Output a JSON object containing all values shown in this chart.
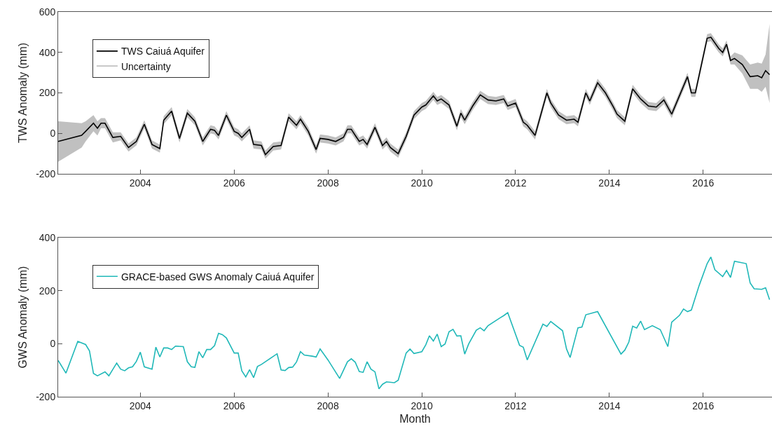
{
  "chart_data": [
    {
      "type": "line",
      "ylabel": "TWS Anomaly (mm)",
      "annotations": [
        "Uncertainty"
      ],
      "x": [
        "2002-04",
        "2002-10",
        "2002-11",
        "2003-01",
        "2003-02",
        "2003-03",
        "2003-04",
        "2003-06",
        "2003-08",
        "2003-10",
        "2003-12",
        "2004-02",
        "2004-04",
        "2004-06",
        "2004-07",
        "2004-09",
        "2004-11",
        "2005-01",
        "2005-03",
        "2005-05",
        "2005-07",
        "2005-08",
        "2005-09",
        "2005-11",
        "2006-01",
        "2006-02",
        "2006-03",
        "2006-05",
        "2006-06",
        "2006-08",
        "2006-09",
        "2006-11",
        "2007-01",
        "2007-03",
        "2007-05",
        "2007-06",
        "2007-08",
        "2007-10",
        "2007-11",
        "2008-01",
        "2008-03",
        "2008-05",
        "2008-06",
        "2008-07",
        "2008-09",
        "2008-10",
        "2008-11",
        "2009-01",
        "2009-03",
        "2009-04",
        "2009-05",
        "2009-07",
        "2009-09",
        "2009-11",
        "2010-01",
        "2010-02",
        "2010-04",
        "2010-05",
        "2010-06",
        "2010-08",
        "2010-10",
        "2010-11",
        "2010-12",
        "2011-02",
        "2011-04",
        "2011-06",
        "2011-08",
        "2011-10",
        "2011-11",
        "2012-01",
        "2012-03",
        "2012-04",
        "2012-06",
        "2012-09",
        "2012-10",
        "2012-12",
        "2013-02",
        "2013-04",
        "2013-05",
        "2013-07",
        "2013-08",
        "2013-10",
        "2013-12",
        "2014-02",
        "2014-03",
        "2014-05",
        "2014-07",
        "2014-09",
        "2014-11",
        "2015-01",
        "2015-03",
        "2015-05",
        "2015-09",
        "2015-10",
        "2015-11",
        "2016-02",
        "2016-03",
        "2016-05",
        "2016-06",
        "2016-07",
        "2016-08",
        "2016-09",
        "2016-11",
        "2017-01",
        "2017-03",
        "2017-04",
        "2017-05",
        "2017-06"
      ],
      "series": [
        {
          "name": "TWS Caiuá Aquifer",
          "color": "#000000",
          "values": [
            -40,
            -10,
            10,
            50,
            25,
            50,
            50,
            -20,
            -15,
            -70,
            -40,
            45,
            -55,
            -75,
            65,
            110,
            -25,
            100,
            60,
            -40,
            20,
            15,
            -10,
            90,
            10,
            0,
            -20,
            20,
            -55,
            -60,
            -105,
            -65,
            -60,
            80,
            40,
            70,
            10,
            -80,
            -25,
            -30,
            -40,
            -20,
            20,
            20,
            -40,
            -30,
            -55,
            30,
            -60,
            -40,
            -70,
            -100,
            -15,
            90,
            130,
            140,
            185,
            160,
            170,
            140,
            35,
            100,
            65,
            135,
            190,
            165,
            160,
            170,
            135,
            150,
            55,
            40,
            -10,
            200,
            150,
            90,
            65,
            70,
            55,
            200,
            160,
            250,
            200,
            130,
            95,
            60,
            220,
            170,
            135,
            130,
            165,
            95,
            280,
            200,
            200,
            470,
            475,
            420,
            400,
            440,
            360,
            370,
            340,
            280,
            285,
            275,
            310,
            290
          ],
          "lower": [
            -140,
            -70,
            -40,
            10,
            -10,
            25,
            25,
            -45,
            -35,
            -90,
            -60,
            25,
            -75,
            -95,
            45,
            90,
            -45,
            80,
            40,
            -60,
            0,
            -5,
            -30,
            70,
            -10,
            -20,
            -40,
            0,
            -75,
            -80,
            -125,
            -85,
            -80,
            60,
            20,
            50,
            -10,
            -100,
            -45,
            -50,
            -60,
            -40,
            0,
            0,
            -60,
            -50,
            -75,
            10,
            -80,
            -60,
            -90,
            -120,
            -35,
            70,
            110,
            120,
            165,
            140,
            150,
            120,
            15,
            80,
            45,
            115,
            170,
            145,
            140,
            150,
            115,
            130,
            35,
            20,
            -30,
            180,
            130,
            70,
            45,
            50,
            35,
            180,
            140,
            230,
            180,
            110,
            75,
            40,
            200,
            150,
            115,
            110,
            145,
            75,
            260,
            180,
            180,
            450,
            455,
            400,
            380,
            420,
            340,
            340,
            295,
            220,
            220,
            205,
            230,
            150
          ],
          "upper": [
            60,
            50,
            60,
            90,
            60,
            75,
            75,
            5,
            5,
            -50,
            -20,
            65,
            -35,
            -55,
            85,
            130,
            -5,
            120,
            80,
            -20,
            40,
            35,
            10,
            110,
            30,
            20,
            0,
            40,
            -35,
            -40,
            -85,
            -45,
            -40,
            100,
            60,
            90,
            30,
            -60,
            -5,
            -10,
            -20,
            0,
            40,
            40,
            -20,
            -10,
            -35,
            50,
            -40,
            -20,
            -50,
            -80,
            5,
            110,
            150,
            160,
            205,
            180,
            190,
            160,
            55,
            120,
            85,
            155,
            210,
            185,
            180,
            190,
            155,
            170,
            75,
            60,
            10,
            220,
            170,
            110,
            85,
            90,
            75,
            220,
            180,
            270,
            220,
            150,
            115,
            80,
            240,
            190,
            155,
            150,
            185,
            115,
            300,
            220,
            220,
            490,
            495,
            440,
            420,
            460,
            380,
            400,
            385,
            340,
            350,
            345,
            390,
            540
          ]
        }
      ],
      "xlim": [
        "2002-04-01",
        "2017-06-20"
      ],
      "xticks": [
        "2004",
        "2006",
        "2008",
        "2010",
        "2012",
        "2014",
        "2016"
      ],
      "ylim": [
        -200,
        600
      ],
      "yticks": [
        -200,
        0,
        200,
        400,
        600
      ],
      "grid": false,
      "legend": "top left"
    },
    {
      "type": "line",
      "xlabel": "Month",
      "ylabel": "GWS Anomaly (mm)",
      "x": [
        "2002-04",
        "2002-06",
        "2002-09",
        "2002-11",
        "2002-12",
        "2003-01",
        "2003-02",
        "2003-04",
        "2003-05",
        "2003-07",
        "2003-08",
        "2003-09",
        "2003-10",
        "2003-11",
        "2003-12",
        "2004-01",
        "2004-02",
        "2004-04",
        "2004-05",
        "2004-06",
        "2004-07",
        "2004-08",
        "2004-09",
        "2004-10",
        "2004-12",
        "2005-01",
        "2005-02",
        "2005-03",
        "2005-04",
        "2005-05",
        "2005-06",
        "2005-07",
        "2005-08",
        "2005-09",
        "2005-10",
        "2005-11",
        "2006-01",
        "2006-02",
        "2006-03",
        "2006-04",
        "2006-05",
        "2006-06",
        "2006-07",
        "2006-08",
        "2006-12",
        "2007-01",
        "2007-02",
        "2007-03",
        "2007-04",
        "2007-05",
        "2007-06",
        "2007-07",
        "2007-09",
        "2007-10",
        "2007-11",
        "2008-01",
        "2008-04",
        "2008-06",
        "2008-07",
        "2008-08",
        "2008-09",
        "2008-10",
        "2008-11",
        "2008-12",
        "2009-01",
        "2009-02",
        "2009-03",
        "2009-04",
        "2009-06",
        "2009-07",
        "2009-09",
        "2009-10",
        "2009-11",
        "2010-01",
        "2010-02",
        "2010-03",
        "2010-04",
        "2010-05",
        "2010-06",
        "2010-07",
        "2010-08",
        "2010-09",
        "2010-10",
        "2010-11",
        "2010-12",
        "2011-01",
        "2011-03",
        "2011-04",
        "2011-05",
        "2011-06",
        "2011-09",
        "2011-10",
        "2011-11",
        "2012-02",
        "2012-03",
        "2012-04",
        "2012-08",
        "2012-09",
        "2012-10",
        "2013-01",
        "2013-02",
        "2013-03",
        "2013-05",
        "2013-06",
        "2013-07",
        "2013-10",
        "2014-04",
        "2014-05",
        "2014-06",
        "2014-07",
        "2014-08",
        "2014-09",
        "2014-10",
        "2014-12",
        "2015-02",
        "2015-04",
        "2015-05",
        "2015-07",
        "2015-08",
        "2015-09",
        "2015-10",
        "2015-12",
        "2016-02",
        "2016-03",
        "2016-04",
        "2016-06",
        "2016-07",
        "2016-08",
        "2016-09",
        "2016-12",
        "2017-01",
        "2017-02",
        "2017-04",
        "2017-05",
        "2017-06"
      ],
      "series": [
        {
          "name": "GRACE-based GWS Anomaly Caiuá Aquifer",
          "color": "#20b8b8",
          "values": [
            -63,
            -111,
            9,
            -3,
            -27,
            -112,
            -121,
            -106,
            -121,
            -73,
            -96,
            -102,
            -91,
            -87,
            -67,
            -32,
            -87,
            -96,
            -13,
            -50,
            -16,
            -16,
            -22,
            -9,
            -11,
            -68,
            -87,
            -89,
            -30,
            -53,
            -22,
            -22,
            -7,
            39,
            34,
            22,
            -35,
            -35,
            -102,
            -125,
            -98,
            -128,
            -86,
            -78,
            -38,
            -99,
            -101,
            -90,
            -88,
            -69,
            -30,
            -43,
            -47,
            -50,
            -20,
            -61,
            -131,
            -68,
            -57,
            -70,
            -105,
            -108,
            -68,
            -96,
            -106,
            -170,
            -153,
            -144,
            -147,
            -138,
            -35,
            -20,
            -37,
            -30,
            -4,
            30,
            10,
            36,
            -11,
            -1,
            45,
            54,
            29,
            30,
            -39,
            -1,
            51,
            60,
            49,
            68,
            97,
            106,
            117,
            -6,
            -13,
            -61,
            74,
            65,
            84,
            49,
            -20,
            -52,
            60,
            63,
            109,
            121,
            -39,
            -24,
            6,
            66,
            59,
            85,
            53,
            68,
            53,
            -11,
            81,
            107,
            131,
            121,
            127,
            220,
            302,
            327,
            279,
            253,
            276,
            250,
            311,
            302,
            229,
            207,
            205,
            211,
            166
          ]
        }
      ],
      "xlim": [
        "2002-04-01",
        "2017-06-20"
      ],
      "xticks": [
        "2004",
        "2006",
        "2008",
        "2010",
        "2012",
        "2014",
        "2016"
      ],
      "ylim": [
        -200,
        400
      ],
      "yticks": [
        -200,
        0,
        200,
        400
      ],
      "grid": false,
      "legend": "top left"
    }
  ]
}
